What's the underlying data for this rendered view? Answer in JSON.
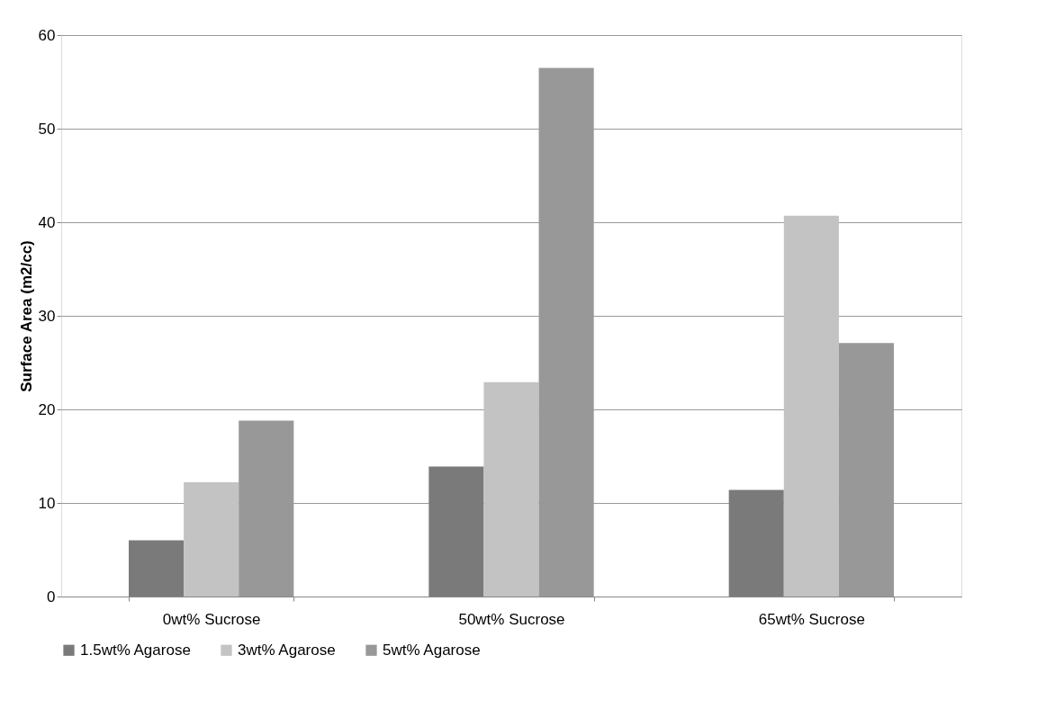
{
  "chart_data": {
    "type": "bar",
    "ylabel": "Surface Area (m2/cc)",
    "categories": [
      "0wt% Sucrose",
      "50wt% Sucrose",
      "65wt% Sucrose"
    ],
    "series": [
      {
        "name": "1.5wt% Agarose",
        "color": "#7a7a7a",
        "values": [
          6.0,
          13.9,
          11.4
        ]
      },
      {
        "name": "3wt% Agarose",
        "color": "#c3c3c3",
        "values": [
          12.2,
          22.9,
          40.7
        ]
      },
      {
        "name": "5wt% Agarose",
        "color": "#989898",
        "values": [
          18.8,
          56.5,
          27.1
        ]
      }
    ],
    "ylim": [
      0,
      60
    ],
    "yticks": [
      0,
      10,
      20,
      30,
      40,
      50,
      60
    ],
    "grid": "y",
    "legend": "bottom"
  }
}
